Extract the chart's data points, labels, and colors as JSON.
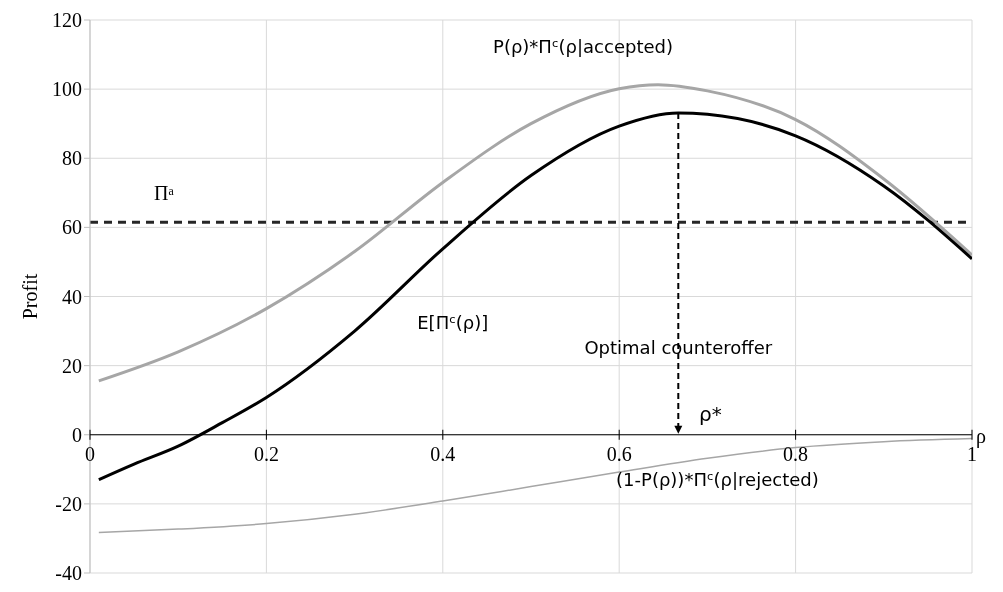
{
  "chart_data": {
    "type": "line",
    "xlabel": "ρ",
    "ylabel": "Profit",
    "xlim": [
      0,
      1
    ],
    "xticks": [
      0,
      0.2,
      0.4,
      0.6,
      0.8,
      1
    ],
    "ylim": [
      -40,
      120
    ],
    "yticks": [
      -40,
      -20,
      0,
      20,
      40,
      60,
      80,
      100,
      120
    ],
    "grid": true,
    "marker": "none",
    "line_style": "solid",
    "series": [
      {
        "name": "P(ρ)*Πᶜ(ρ|accepted)",
        "color": "#a6a6a6",
        "x": [
          0.01,
          0.1,
          0.2,
          0.3,
          0.4,
          0.5,
          0.6,
          0.644,
          0.7,
          0.8,
          0.9,
          1
        ],
        "values": [
          15.6,
          24,
          36.5,
          53,
          73,
          90,
          100.1,
          101.3,
          99.5,
          91.2,
          74,
          52
        ]
      },
      {
        "name": "E[Πᶜ(ρ)]",
        "color": "#000000",
        "x": [
          0.01,
          0.05,
          0.1,
          0.15,
          0.2,
          0.3,
          0.4,
          0.5,
          0.6,
          0.667,
          0.7,
          0.8,
          0.9,
          1
        ],
        "values": [
          -13,
          -8.5,
          -3.3,
          3.5,
          10.8,
          30,
          53.8,
          75,
          89.3,
          93.1,
          92.7,
          86.5,
          72,
          50.9
        ]
      },
      {
        "name": "(1-P(ρ))*Πᶜ(ρ|rejected)",
        "color": "#a6a6a6",
        "x": [
          0.01,
          0.1,
          0.2,
          0.3,
          0.4,
          0.5,
          0.6,
          0.7,
          0.8,
          0.9,
          1
        ],
        "values": [
          -28.3,
          -27.3,
          -25.7,
          -23,
          -19.2,
          -15,
          -10.8,
          -6.8,
          -3.7,
          -2,
          -1.1
        ]
      }
    ],
    "ref_lines": [
      {
        "axis": "y",
        "value": 61.5,
        "label": "Πᵃ",
        "line_style": "dashed",
        "color": "#262626"
      }
    ],
    "annotations": [
      "Optimal counteroffer",
      {
        "text": "ρ*",
        "x": 0.667,
        "y": 93.1
      }
    ]
  }
}
